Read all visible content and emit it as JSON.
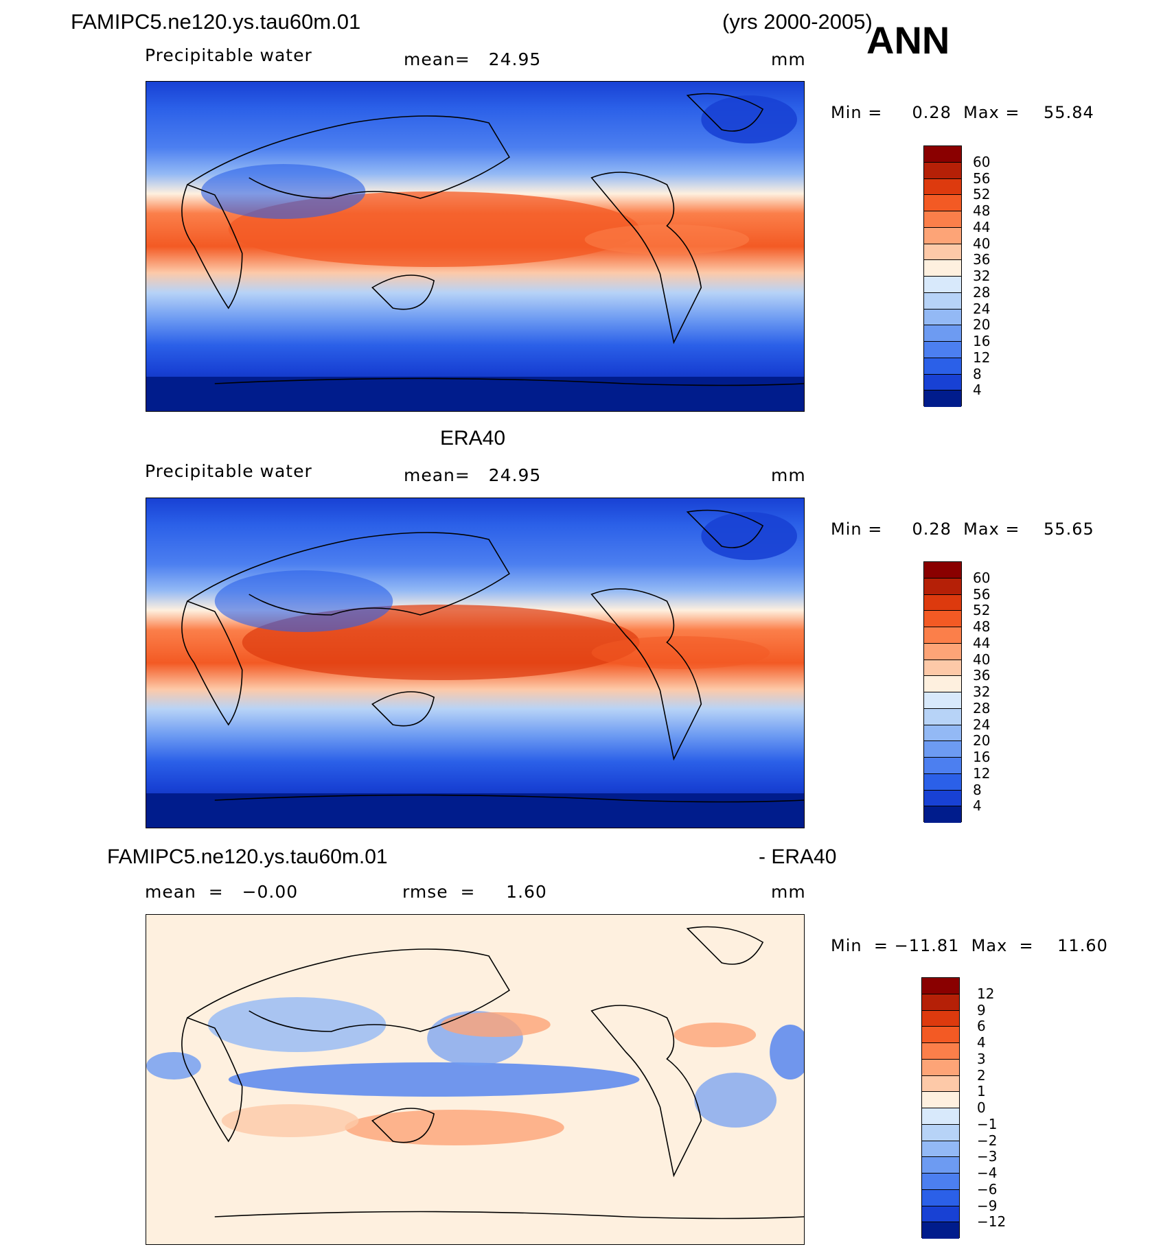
{
  "header": {
    "case_name": "FAMIPC5.ne120.ys.tau60m.01",
    "years": "(yrs 2000-2005)",
    "season": "ANN"
  },
  "panels": [
    {
      "title": "",
      "variable": "Precipitable water",
      "mean_text": "mean=   24.95",
      "units": "mm",
      "min_max": "Min =     0.28  Max =    55.84",
      "field": "model"
    },
    {
      "title": "ERA40",
      "variable": "Precipitable water",
      "mean_text": "mean=   24.95",
      "units": "mm",
      "min_max": "Min =     0.28  Max =    55.65",
      "field": "obs"
    },
    {
      "title_left": "FAMIPC5.ne120.ys.tau60m.01",
      "title_right": "- ERA40",
      "mean_text": "mean  =   −0.00",
      "rmse_text": "rmse  =     1.60",
      "units": "mm",
      "min_max": "Min  = −11.81  Max  =    11.60",
      "field": "diff"
    }
  ],
  "colorbars": {
    "absolute": {
      "labels": [
        "60",
        "56",
        "52",
        "48",
        "44",
        "40",
        "36",
        "32",
        "28",
        "24",
        "20",
        "16",
        "12",
        "8",
        "4"
      ],
      "colors": [
        "#8a0000",
        "#b52007",
        "#dd3a0e",
        "#f35a24",
        "#fb7f4a",
        "#fda477",
        "#fdc9a8",
        "#fef0df",
        "#d8e9fb",
        "#b7d3f7",
        "#93b9f5",
        "#6d9bf2",
        "#4c7ff0",
        "#2b60e8",
        "#1841d4",
        "#001c8c"
      ]
    },
    "difference": {
      "labels": [
        "12",
        "9",
        "6",
        "4",
        "3",
        "2",
        "1",
        "0",
        "−1",
        "−2",
        "−3",
        "−4",
        "−6",
        "−9",
        "−12"
      ],
      "colors": [
        "#8a0000",
        "#b52007",
        "#dd3a0e",
        "#f35a24",
        "#fb7f4a",
        "#fda477",
        "#fdc9a8",
        "#fef0df",
        "#d8e9fb",
        "#b7d3f7",
        "#93b9f5",
        "#6d9bf2",
        "#4c7ff0",
        "#2b60e8",
        "#1841d4",
        "#001c8c"
      ]
    }
  }
}
